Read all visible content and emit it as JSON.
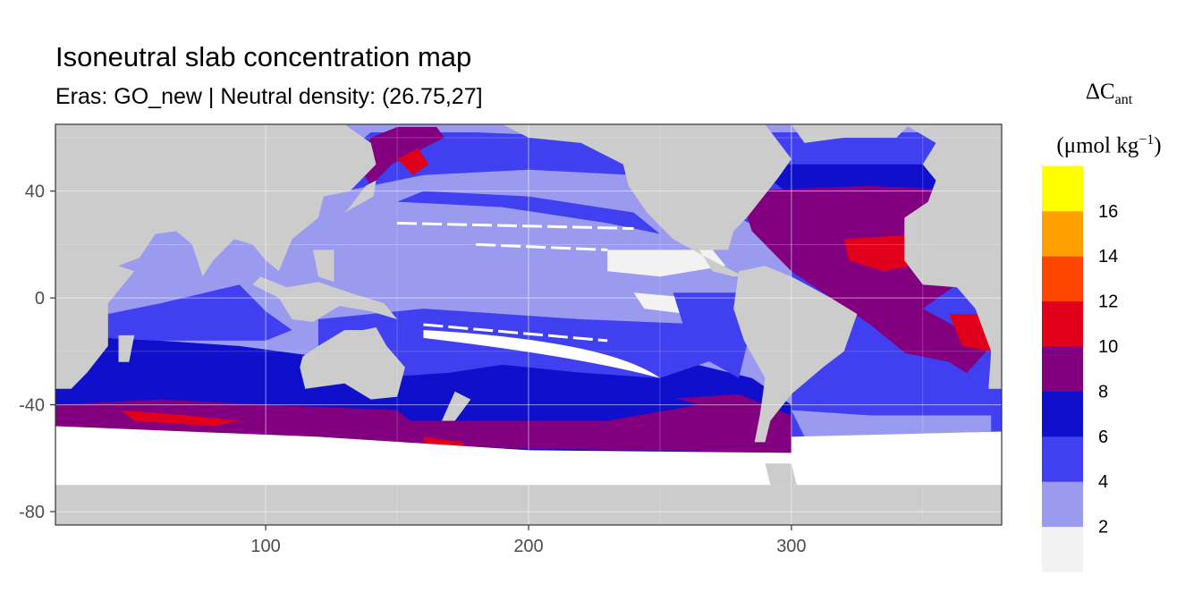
{
  "chart_data": {
    "type": "heatmap",
    "title": "Isoneutral slab concentration map",
    "subtitle": "Eras: GO_new | Neutral density: (26.75,27]",
    "xlabel": "",
    "ylabel": "",
    "xlim": [
      20,
      380
    ],
    "ylim": [
      -85,
      65
    ],
    "x_ticks": [
      100,
      200,
      300
    ],
    "y_ticks": [
      40,
      0,
      -40,
      -80
    ],
    "x_tick_labels": [
      "100",
      "200",
      "300"
    ],
    "y_tick_labels": [
      "40",
      "0",
      "-40",
      "-80"
    ],
    "grid": true,
    "legend": {
      "title_symbol": "ΔC",
      "title_subscript": "ant",
      "unit_open": "(μmol kg",
      "unit_superscript": "−1",
      "unit_close": ")",
      "placement": "right",
      "breaks": [
        {
          "label": "",
          "color": "#f2f2f2"
        },
        {
          "label": "2",
          "color": "#9a9aee"
        },
        {
          "label": "4",
          "color": "#4040f0"
        },
        {
          "label": "6",
          "color": "#1010cc"
        },
        {
          "label": "8",
          "color": "#820080"
        },
        {
          "label": "10",
          "color": "#e0001c"
        },
        {
          "label": "12",
          "color": "#ff4500"
        },
        {
          "label": "14",
          "color": "#ff9f00"
        },
        {
          "label": "16",
          "color": "#ffff00"
        }
      ]
    },
    "colors": {
      "land": "#cccccc",
      "no_data": "#ffffff",
      "bin_0_2": "#f2f2f2",
      "bin_2_4": "#9a9aee",
      "bin_4_6": "#4040f0",
      "bin_6_8": "#1010cc",
      "bin_8_10": "#820080",
      "bin_10_12": "#e0001c"
    },
    "regions": [
      {
        "name": "southern-ocean-no-data",
        "value_range": "none",
        "lon": [
          20,
          380
        ],
        "lat": [
          -85,
          -48
        ]
      },
      {
        "name": "south-pacific-southern-band",
        "value_range": "8-10",
        "lon": [
          20,
          300
        ],
        "lat": [
          -58,
          -40
        ]
      },
      {
        "name": "indian-southern-band-high",
        "value_range": "10-12",
        "lon": [
          45,
          90
        ],
        "lat": [
          -48,
          -42
        ]
      },
      {
        "name": "south-indian-pacific",
        "value_range": "6-8",
        "lon": [
          20,
          300
        ],
        "lat": [
          -40,
          -15
        ]
      },
      {
        "name": "tropical-indian",
        "value_range": "2-4",
        "lon": [
          40,
          120
        ],
        "lat": [
          -15,
          25
        ]
      },
      {
        "name": "north-pacific",
        "value_range": "2-4",
        "lon": [
          120,
          260
        ],
        "lat": [
          0,
          40
        ]
      },
      {
        "name": "north-pacific-subpolar",
        "value_range": "4-6",
        "lon": [
          140,
          240
        ],
        "lat": [
          40,
          60
        ]
      },
      {
        "name": "kuroshio-extension",
        "value_range": "8-10",
        "lon": [
          140,
          170
        ],
        "lat": [
          40,
          60
        ]
      },
      {
        "name": "east-pacific-low",
        "value_range": "0-2",
        "lon": [
          230,
          270
        ],
        "lat": [
          8,
          18
        ]
      },
      {
        "name": "north-atlantic",
        "value_range": "8-10",
        "lon": [
          280,
          360
        ],
        "lat": [
          10,
          40
        ]
      },
      {
        "name": "north-atlantic-high",
        "value_range": "10-12",
        "lon": [
          320,
          350
        ],
        "lat": [
          10,
          22
        ]
      },
      {
        "name": "south-atlantic",
        "value_range": "4-6",
        "lon": [
          300,
          375
        ],
        "lat": [
          -55,
          -20
        ]
      }
    ]
  }
}
